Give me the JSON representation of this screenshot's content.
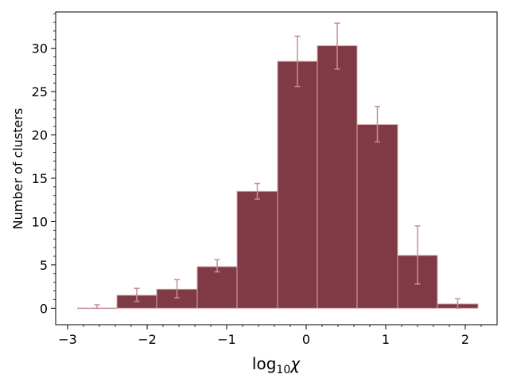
{
  "chart_data": {
    "type": "bar",
    "title": "",
    "xlabel": "log10χ",
    "xlabel_base": "log",
    "xlabel_sub": "10",
    "xlabel_var": "χ",
    "ylabel": "Number of clusters",
    "xlim": [
      -3.15,
      2.4
    ],
    "ylim": [
      -1.9,
      34.2
    ],
    "x_ticks": [
      -3,
      -2,
      -1,
      0,
      1,
      2
    ],
    "x_tick_labels": [
      "−3",
      "−2",
      "−1",
      "0",
      "1",
      "2"
    ],
    "y_ticks": [
      0,
      5,
      10,
      15,
      20,
      25,
      30
    ],
    "y_tick_labels": [
      "0",
      "5",
      "10",
      "15",
      "20",
      "25",
      "30"
    ],
    "grid": false,
    "legend": "none",
    "colors": {
      "bar_fill": "#7f3a45",
      "bar_edge": "#d4a9af",
      "error_bar": "#c49097"
    },
    "bins": [
      {
        "x0": -2.88,
        "x1": -2.38,
        "value": 0.0,
        "err_low": 0.0,
        "err_high": 0.4
      },
      {
        "x0": -2.38,
        "x1": -1.88,
        "value": 1.5,
        "err_low": 0.8,
        "err_high": 2.3
      },
      {
        "x0": -1.88,
        "x1": -1.37,
        "value": 2.2,
        "err_low": 1.2,
        "err_high": 3.3
      },
      {
        "x0": -1.37,
        "x1": -0.87,
        "value": 4.8,
        "err_low": 4.2,
        "err_high": 5.6
      },
      {
        "x0": -0.87,
        "x1": -0.36,
        "value": 13.5,
        "err_low": 12.6,
        "err_high": 14.4
      },
      {
        "x0": -0.36,
        "x1": 0.14,
        "value": 28.5,
        "err_low": 25.6,
        "err_high": 31.4
      },
      {
        "x0": 0.14,
        "x1": 0.64,
        "value": 30.3,
        "err_low": 27.6,
        "err_high": 32.9
      },
      {
        "x0": 0.64,
        "x1": 1.15,
        "value": 21.2,
        "err_low": 19.2,
        "err_high": 23.3
      },
      {
        "x0": 1.15,
        "x1": 1.65,
        "value": 6.1,
        "err_low": 2.8,
        "err_high": 9.5
      },
      {
        "x0": 1.65,
        "x1": 2.16,
        "value": 0.5,
        "err_low": 0.0,
        "err_high": 1.1
      }
    ]
  }
}
